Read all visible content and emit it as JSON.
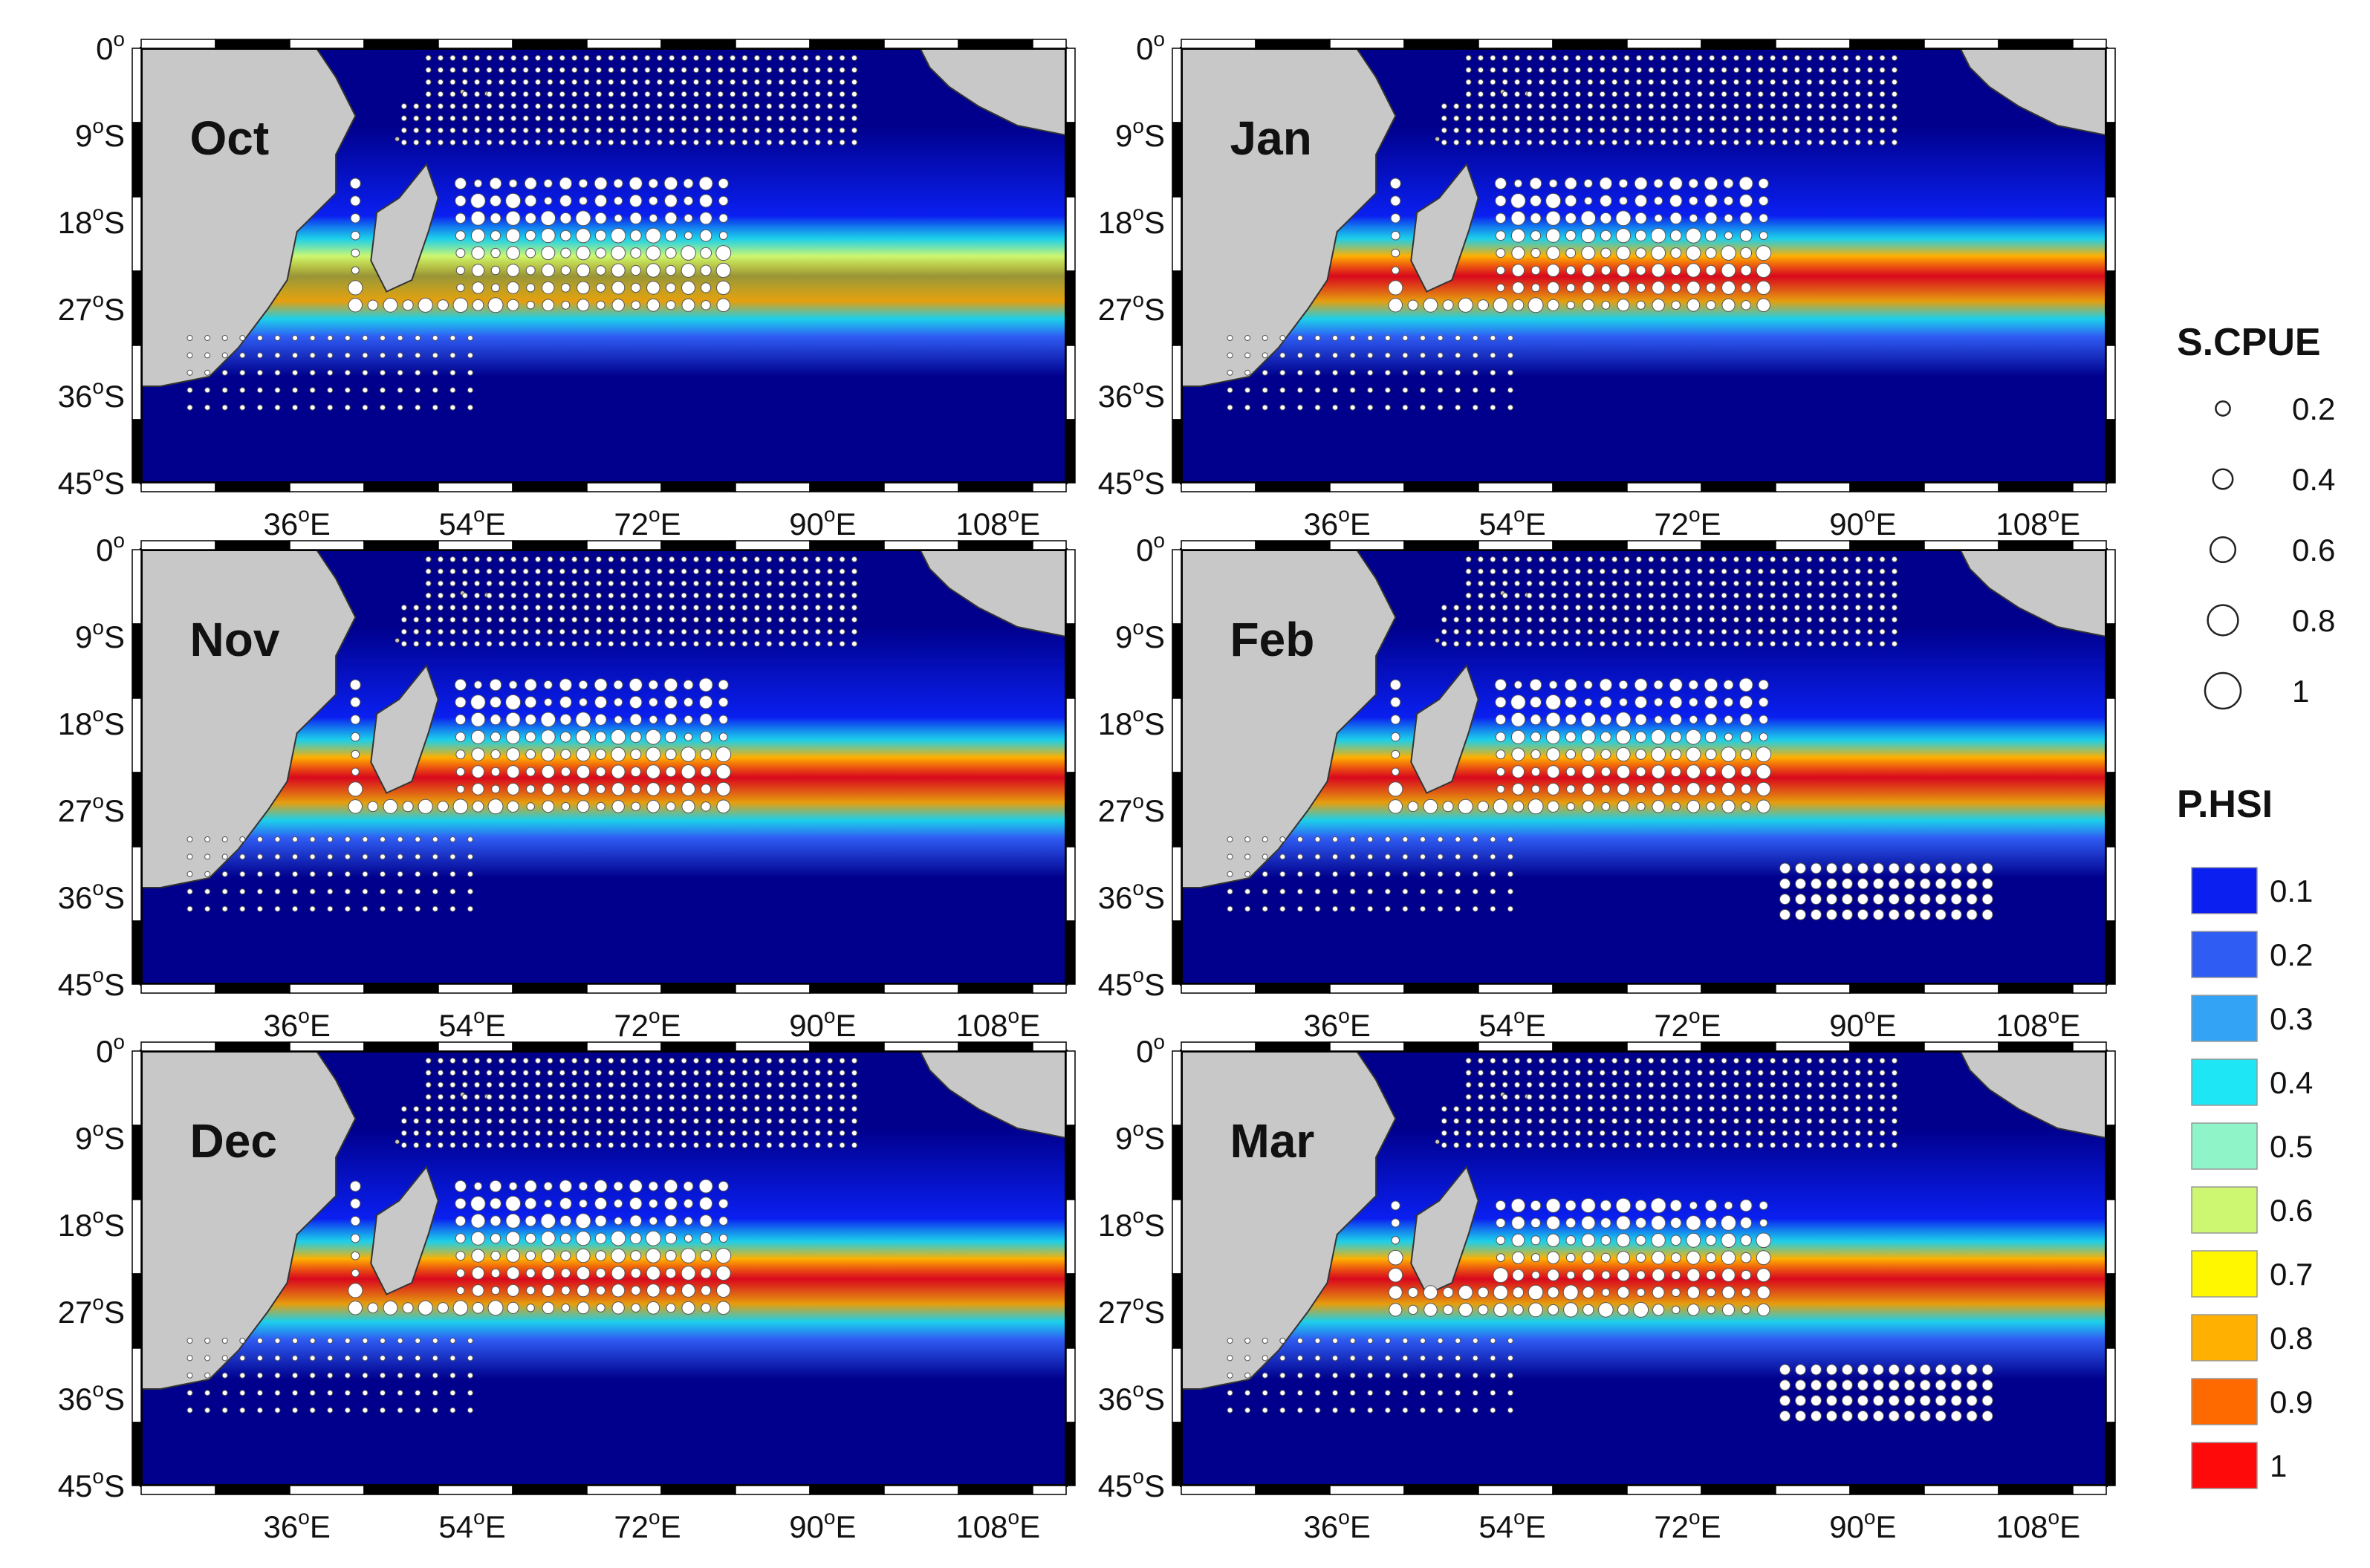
{
  "panels": [
    {
      "label": "Oct",
      "month": "Oct"
    },
    {
      "label": "Jan",
      "month": "Jan"
    },
    {
      "label": "Nov",
      "month": "Nov"
    },
    {
      "label": "Feb",
      "month": "Feb"
    },
    {
      "label": "Dec",
      "month": "Dec"
    },
    {
      "label": "Mar",
      "month": "Mar"
    }
  ],
  "axes": {
    "lat_ticks": [
      {
        "value": 0,
        "label": "0",
        "sup": "o",
        "suffix": ""
      },
      {
        "value": -9,
        "label": "9",
        "sup": "o",
        "suffix": "S"
      },
      {
        "value": -18,
        "label": "18",
        "sup": "o",
        "suffix": "S"
      },
      {
        "value": -27,
        "label": "27",
        "sup": "o",
        "suffix": "S"
      },
      {
        "value": -36,
        "label": "36",
        "sup": "o",
        "suffix": "S"
      },
      {
        "value": -45,
        "label": "45",
        "sup": "o",
        "suffix": "S"
      }
    ],
    "lon_ticks": [
      {
        "value": 36,
        "label": "36",
        "sup": "o",
        "suffix": "E"
      },
      {
        "value": 54,
        "label": "54",
        "sup": "o",
        "suffix": "E"
      },
      {
        "value": 72,
        "label": "72",
        "sup": "o",
        "suffix": "E"
      },
      {
        "value": 90,
        "label": "90",
        "sup": "o",
        "suffix": "E"
      },
      {
        "value": 108,
        "label": "108",
        "sup": "o",
        "suffix": "E"
      }
    ],
    "lon_range": [
      20,
      115
    ],
    "lat_range": [
      -45,
      0
    ]
  },
  "legend": {
    "cpue_title": "S.CPUE",
    "cpue_items": [
      {
        "value": 0.2,
        "label": "0.2"
      },
      {
        "value": 0.4,
        "label": "0.4"
      },
      {
        "value": 0.6,
        "label": "0.6"
      },
      {
        "value": 0.8,
        "label": "0.8"
      },
      {
        "value": 1,
        "label": "1"
      }
    ],
    "hsi_title": "P.HSI",
    "hsi_items": [
      {
        "label": "0.1",
        "color": "#0a1ff0"
      },
      {
        "label": "0.2",
        "color": "#2f5cf3"
      },
      {
        "label": "0.3",
        "color": "#32a3f5"
      },
      {
        "label": "0.4",
        "color": "#1fe6f5"
      },
      {
        "label": "0.5",
        "color": "#8ff5c8"
      },
      {
        "label": "0.6",
        "color": "#cdf770"
      },
      {
        "label": "0.7",
        "color": "#fff700"
      },
      {
        "label": "0.8",
        "color": "#ffb000"
      },
      {
        "label": "0.9",
        "color": "#ff6a00"
      },
      {
        "label": "1",
        "color": "#ff0a0a"
      }
    ]
  },
  "colors": {
    "ocean": "#00008c",
    "land": "#c8c8c8",
    "frame": "#000000",
    "cpue_marker_fill": "#ffffff",
    "cpue_marker_stroke": "#555555"
  }
}
